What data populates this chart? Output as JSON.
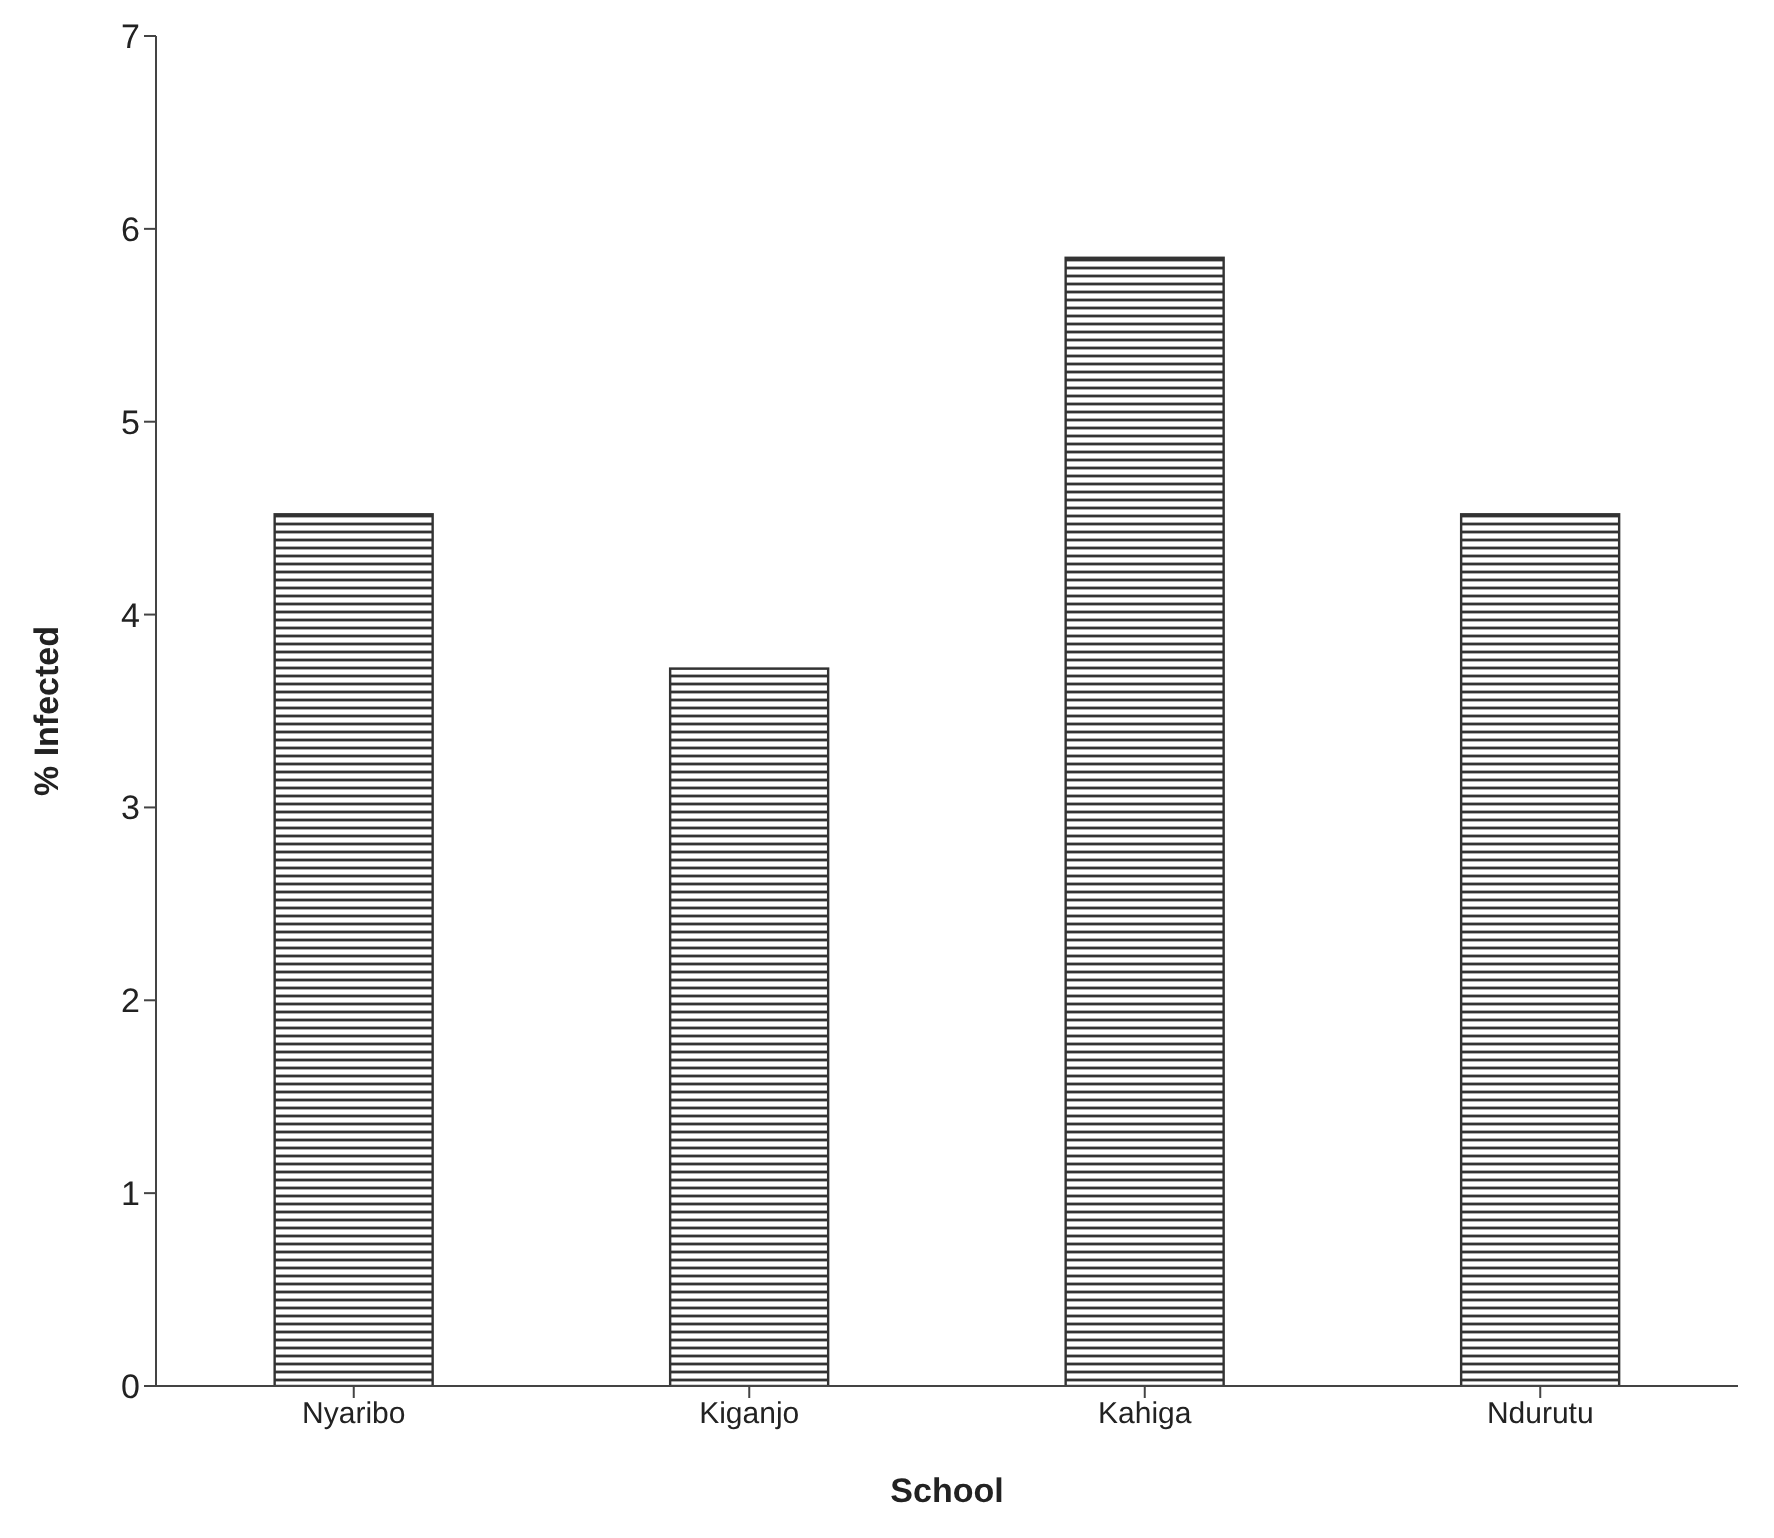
{
  "chart_data": {
    "type": "bar",
    "xlabel": "School",
    "ylabel": "% Infected",
    "categories": [
      "Nyaribo",
      "Kiganjo",
      "Kahiga",
      "Ndurutu"
    ],
    "values": [
      4.52,
      3.72,
      5.85,
      4.52
    ],
    "color": "#333333",
    "ylim": [
      0,
      7
    ],
    "yticks": [
      0,
      1,
      2,
      3,
      4,
      5,
      6,
      7
    ],
    "grid": false,
    "legend": false
  }
}
